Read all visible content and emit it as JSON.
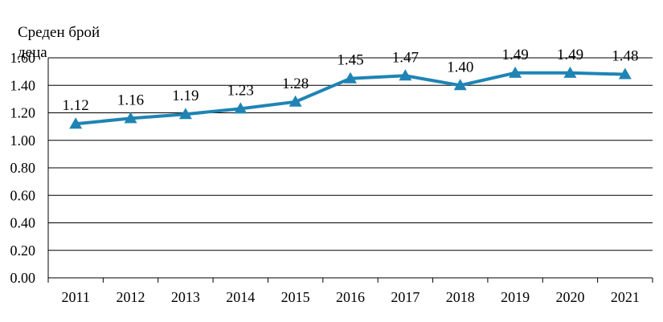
{
  "chart_data": {
    "type": "line",
    "title": "",
    "xlabel": "",
    "ylabel": "Среден брой деца",
    "categories": [
      "2011",
      "2012",
      "2013",
      "2014",
      "2015",
      "2016",
      "2017",
      "2018",
      "2019",
      "2020",
      "2021"
    ],
    "series": [
      {
        "values": [
          1.12,
          1.16,
          1.19,
          1.23,
          1.28,
          1.45,
          1.47,
          1.4,
          1.49,
          1.49,
          1.48
        ],
        "data_labels": [
          "1.12",
          "1.16",
          "1.19",
          "1.23",
          "1.28",
          "1.45",
          "1.47",
          "1.40",
          "1.49",
          "1.49",
          "1.48"
        ],
        "color": "#1f84b4",
        "marker": "triangle"
      }
    ],
    "ylim": [
      0,
      1.6
    ],
    "yticks": [
      "0.00",
      "0.20",
      "0.40",
      "0.60",
      "0.80",
      "1.00",
      "1.20",
      "1.40",
      "1.60"
    ],
    "grid": true,
    "legend": "none"
  }
}
